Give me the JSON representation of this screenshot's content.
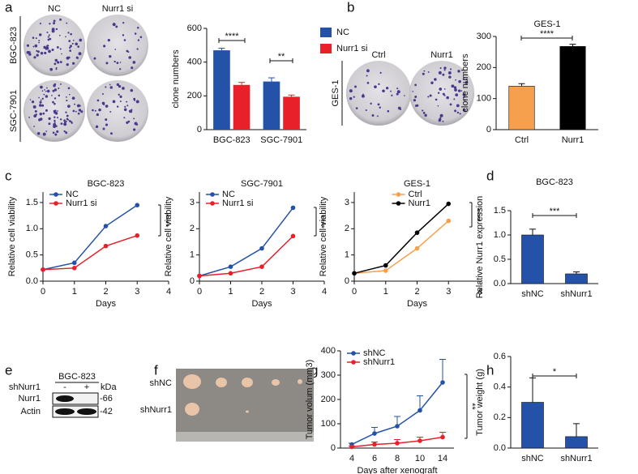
{
  "chart_data": [
    {
      "type": "bar",
      "ylabel": "clone numbers",
      "categories": [
        "BGC-823",
        "SGC-7901"
      ],
      "series": [
        {
          "name": "NC",
          "color": "#2352a8",
          "values": [
            470,
            285
          ],
          "errors": [
            12,
            22
          ]
        },
        {
          "name": "Nurr1 si",
          "color": "#e8202a",
          "values": [
            265,
            195
          ],
          "errors": [
            15,
            10
          ]
        }
      ],
      "ylim": [
        0,
        600
      ],
      "yticks": [
        0,
        200,
        400,
        600
      ],
      "legend": "right",
      "annotations": [
        "****",
        "**"
      ]
    },
    {
      "type": "bar",
      "title": "GES-1",
      "ylabel": "clone numbers",
      "categories": [
        "Ctrl",
        "Nurr1"
      ],
      "values": [
        140,
        268
      ],
      "errors": [
        8,
        7
      ],
      "colors": [
        "#f6a04d",
        "#000000"
      ],
      "ylim": [
        0,
        300
      ],
      "yticks": [
        0,
        100,
        200,
        300
      ],
      "annotations": [
        "****"
      ]
    },
    {
      "type": "line",
      "title": "BGC-823",
      "xlabel": "Days",
      "ylabel": "Relative cell viability",
      "x": [
        0,
        1,
        2,
        3
      ],
      "series": [
        {
          "name": "NC",
          "color": "#2352a8",
          "values": [
            0.22,
            0.35,
            1.05,
            1.45
          ]
        },
        {
          "name": "Nurr1 si",
          "color": "#e8202a",
          "values": [
            0.22,
            0.25,
            0.67,
            0.87
          ]
        }
      ],
      "xlim": [
        0,
        4
      ],
      "xticks": [
        0,
        1,
        2,
        3,
        4
      ],
      "ylim": [
        0,
        1.7
      ],
      "yticks": [
        {
          "value": 0,
          "label": "0.0"
        },
        0.5,
        {
          "value": 1,
          "label": "1.0"
        },
        1.5
      ],
      "legend": "upper left",
      "annotations": [
        "****"
      ]
    },
    {
      "type": "line",
      "title": "SGC-7901",
      "xlabel": "Days",
      "ylabel": "Relative cell viability",
      "x": [
        0,
        1,
        2,
        3
      ],
      "series": [
        {
          "name": "NC",
          "color": "#2352a8",
          "values": [
            0.2,
            0.55,
            1.25,
            2.8
          ]
        },
        {
          "name": "Nurr1 si",
          "color": "#e8202a",
          "values": [
            0.2,
            0.3,
            0.55,
            1.72
          ]
        }
      ],
      "xlim": [
        0,
        4
      ],
      "xticks": [
        0,
        1,
        2,
        3,
        4
      ],
      "ylim": [
        0,
        3.4
      ],
      "yticks": [
        0,
        1,
        2,
        3
      ],
      "legend": "upper left",
      "annotations": [
        "****"
      ]
    },
    {
      "type": "line",
      "title": "GES-1",
      "xlabel": "Days",
      "ylabel": "Relative cell viability",
      "x": [
        0,
        1,
        2,
        3
      ],
      "series": [
        {
          "name": "Ctrl",
          "color": "#f6a04d",
          "values": [
            0.3,
            0.4,
            1.25,
            2.3
          ]
        },
        {
          "name": "Nurr1",
          "color": "#000000",
          "values": [
            0.3,
            0.6,
            1.85,
            2.95
          ]
        }
      ],
      "xlim": [
        0,
        4
      ],
      "xticks": [
        0,
        1,
        2,
        3,
        4
      ],
      "ylim": [
        0,
        3.4
      ],
      "yticks": [
        0,
        1,
        2,
        3
      ],
      "legend": "upper center",
      "annotations": [
        "****"
      ]
    },
    {
      "type": "bar",
      "title": "BGC-823",
      "ylabel": "Relative Nurr1 expression",
      "categories": [
        "shNC",
        "shNurr1"
      ],
      "values": [
        1.0,
        0.2
      ],
      "errors": [
        0.12,
        0.04
      ],
      "color": "#2352a8",
      "ylim": [
        0,
        1.5
      ],
      "yticks": [
        {
          "value": 0,
          "label": "0.0"
        },
        0.5,
        {
          "value": 1,
          "label": "1.0"
        },
        1.5
      ],
      "annotations": [
        "***"
      ]
    },
    {
      "type": "line",
      "xlabel": "Days after xenograft",
      "ylabel": "Tumor volum (mm3)",
      "categories": [
        "4",
        "6",
        "8",
        "10",
        "14"
      ],
      "series": [
        {
          "name": "shNC",
          "color": "#2352a8",
          "values": [
            15,
            60,
            90,
            155,
            270
          ],
          "errors": [
            5,
            25,
            40,
            60,
            95
          ]
        },
        {
          "name": "shNurr1",
          "color": "#e8202a",
          "values": [
            5,
            15,
            20,
            30,
            45
          ],
          "errors": [
            3,
            10,
            15,
            15,
            20
          ]
        }
      ],
      "ylim": [
        0,
        400
      ],
      "yticks": [
        0,
        100,
        200,
        300,
        400
      ],
      "legend": "upper left",
      "annotations": [
        "**"
      ]
    },
    {
      "type": "bar",
      "ylabel": "Tumor weight (g)",
      "categories": [
        "shNC",
        "shNurr1"
      ],
      "values": [
        0.3,
        0.075
      ],
      "errors": [
        0.16,
        0.085
      ],
      "color": "#2352a8",
      "ylim": [
        0,
        0.6
      ],
      "yticks": [
        {
          "value": 0,
          "label": "0.0"
        },
        0.2,
        0.4,
        0.6
      ],
      "annotations": [
        "*"
      ]
    }
  ],
  "panel_labels": [
    "a",
    "b",
    "c",
    "d",
    "e",
    "f",
    "g",
    "h"
  ],
  "images": {
    "a": {
      "columns": [
        "NC",
        "Nurr1 si"
      ],
      "rows": [
        "BGC-823",
        "SGC-7901"
      ]
    },
    "b": {
      "columns": [
        "Ctrl",
        "Nurr1"
      ],
      "row": "GES-1"
    },
    "e": {
      "header": "BGC-823",
      "treatment": "shNurr1",
      "lanes": [
        "-",
        "+"
      ],
      "unit": "kDa",
      "bands": [
        {
          "name": "Nurr1",
          "marker": "-66"
        },
        {
          "name": "Actin",
          "marker": "-42"
        }
      ]
    },
    "f": {
      "rows": [
        "shNC",
        "shNurr1"
      ]
    }
  }
}
